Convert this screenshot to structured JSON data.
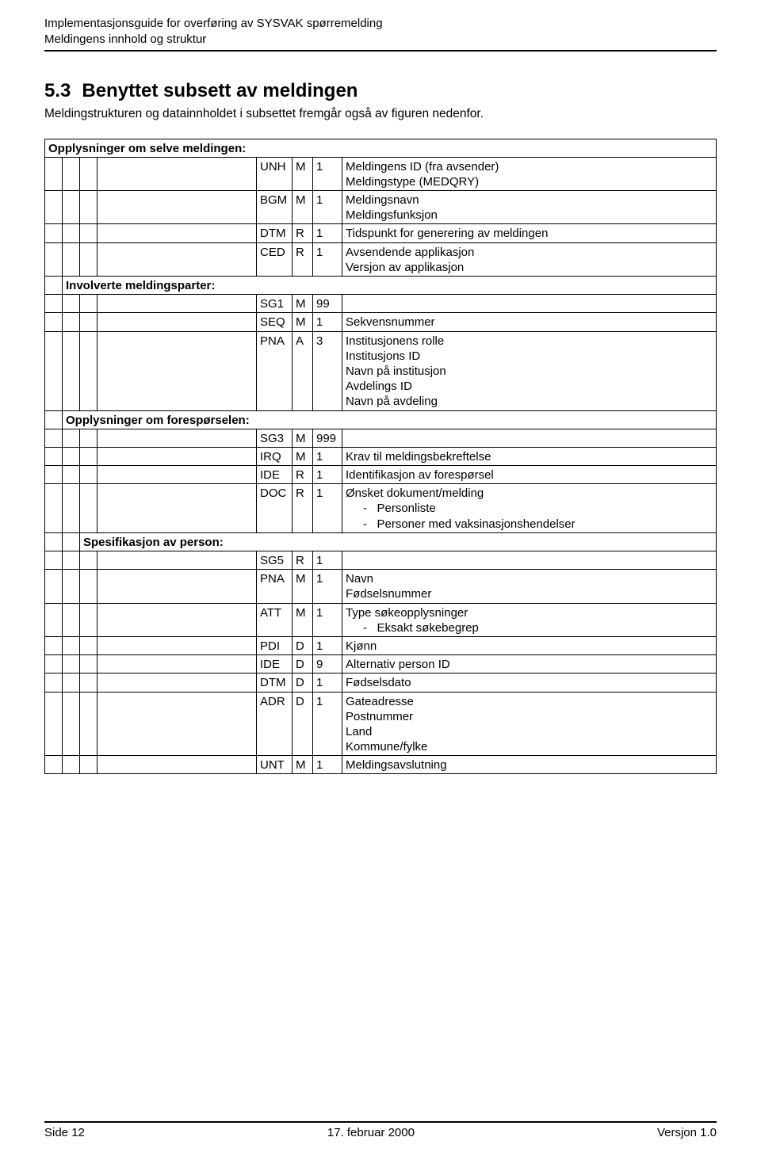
{
  "header": {
    "line1": "Implementasjonsguide for overføring av SYSVAK spørremelding",
    "line2": "Meldingens innhold og struktur"
  },
  "section": {
    "number": "5.3",
    "title": "Benyttet subsett av meldingen",
    "intro": "Meldingstrukturen og datainnholdet i subsettet fremgår også av figuren nedenfor."
  },
  "groups": {
    "g1": "Opplysninger om selve meldingen:",
    "g2": "Involverte meldingsparter:",
    "g3": "Opplysninger om forespørselen:",
    "g4": "Spesifikasjon av person:"
  },
  "rows": {
    "unh": {
      "seg": "UNH",
      "ma": "M",
      "rep": "1",
      "desc": "Meldingens ID (fra avsender)\nMeldingstype (MEDQRY)"
    },
    "bgm": {
      "seg": "BGM",
      "ma": "M",
      "rep": "1",
      "desc": "Meldingsnavn\nMeldingsfunksjon"
    },
    "dtm": {
      "seg": "DTM",
      "ma": "R",
      "rep": "1",
      "desc": "Tidspunkt for generering av meldingen"
    },
    "ced": {
      "seg": "CED",
      "ma": "R",
      "rep": "1",
      "desc": "Avsendende applikasjon\nVersjon av applikasjon"
    },
    "sg1": {
      "seg": "SG1",
      "ma": "M",
      "rep": "99",
      "desc": ""
    },
    "seq": {
      "seg": "SEQ",
      "ma": "M",
      "rep": "1",
      "desc": "Sekvensnummer"
    },
    "pna1": {
      "seg": "PNA",
      "ma": "A",
      "rep": "3",
      "desc": "Institusjonens rolle\nInstitusjons ID\nNavn på institusjon\nAvdelings ID\nNavn på avdeling"
    },
    "sg3": {
      "seg": "SG3",
      "ma": "M",
      "rep": "999",
      "desc": ""
    },
    "irq": {
      "seg": "IRQ",
      "ma": "M",
      "rep": "1",
      "desc": "Krav til meldingsbekreftelse"
    },
    "ide1": {
      "seg": "IDE",
      "ma": "R",
      "rep": "1",
      "desc": "Identifikasjon av forespørsel"
    },
    "doc": {
      "seg": "DOC",
      "ma": "R",
      "rep": "1",
      "desc": "Ønsket dokument/melding",
      "sub": [
        "Personliste",
        "Personer med vaksinasjonshendelser"
      ]
    },
    "sg5": {
      "seg": "SG5",
      "ma": "R",
      "rep": "1",
      "desc": ""
    },
    "pna2": {
      "seg": "PNA",
      "ma": "M",
      "rep": "1",
      "desc": "Navn\nFødselsnummer"
    },
    "att": {
      "seg": "ATT",
      "ma": "M",
      "rep": "1",
      "desc": "Type søkeopplysninger",
      "sub": [
        "Eksakt søkebegrep"
      ]
    },
    "pdi": {
      "seg": "PDI",
      "ma": "D",
      "rep": "1",
      "desc": "Kjønn"
    },
    "ide2": {
      "seg": "IDE",
      "ma": "D",
      "rep": "9",
      "desc": "Alternativ person ID"
    },
    "dtm2": {
      "seg": "DTM",
      "ma": "D",
      "rep": "1",
      "desc": "Fødselsdato"
    },
    "adr": {
      "seg": "ADR",
      "ma": "D",
      "rep": "1",
      "desc": "Gateadresse\nPostnummer\nLand\nKommune/fylke"
    },
    "unt": {
      "seg": "UNT",
      "ma": "M",
      "rep": "1",
      "desc": "Meldingsavslutning"
    }
  },
  "footer": {
    "left": "Side 12",
    "center": "17. februar 2000",
    "right": "Versjon 1.0"
  }
}
